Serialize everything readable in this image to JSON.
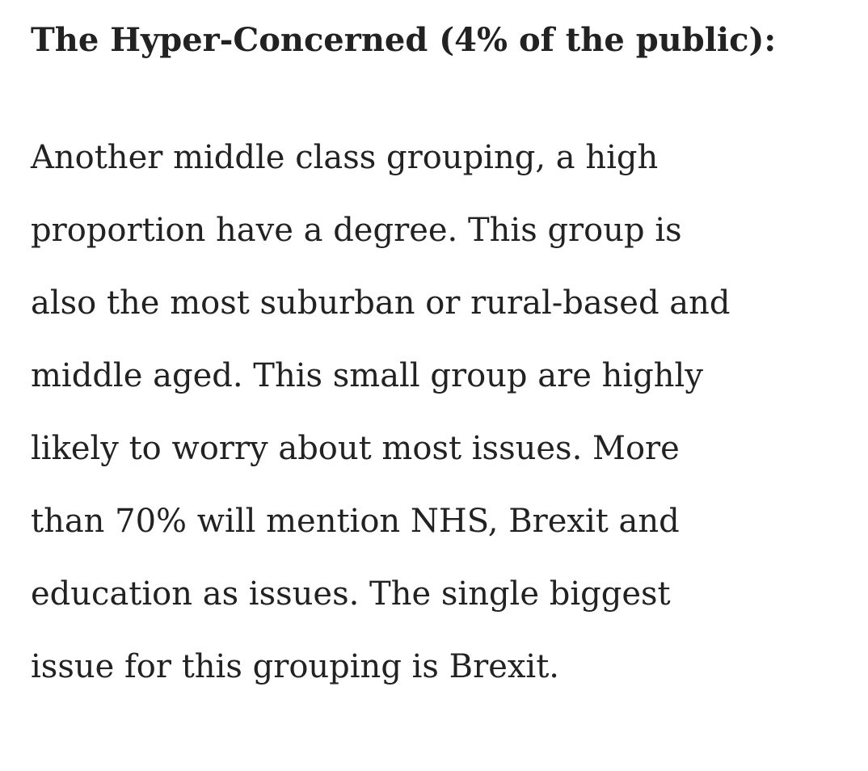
{
  "heading": "The Hyper-Concerned (4% of the public):",
  "paragraph": {
    "lines": [
      "Another middle class grouping, a high",
      "proportion have a degree. This group is",
      "also the most suburban or rural-based and",
      "middle aged. This small group are highly",
      "likely to worry about most issues. More",
      "than 70% will mention NHS, Brexit and",
      "education as issues. The single biggest",
      "issue for this grouping is Brexit."
    ]
  }
}
